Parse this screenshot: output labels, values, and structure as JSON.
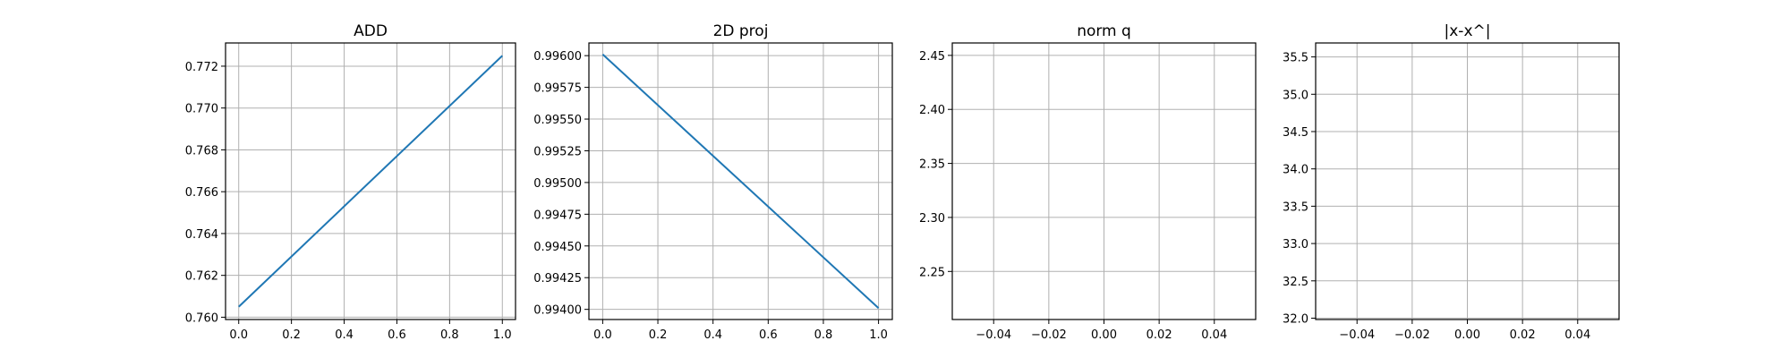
{
  "chart_data": [
    {
      "type": "line",
      "title": "ADD",
      "xlabel": "",
      "ylabel": "",
      "xlim": [
        -0.05,
        1.05
      ],
      "ylim": [
        0.75989,
        0.77311
      ],
      "xticks": [
        0.0,
        0.2,
        0.4,
        0.6,
        0.8,
        1.0
      ],
      "yticks": [
        0.76,
        0.762,
        0.764,
        0.766,
        0.768,
        0.77,
        0.772
      ],
      "xtick_labels": [
        "0.0",
        "0.2",
        "0.4",
        "0.6",
        "0.8",
        "1.0"
      ],
      "ytick_labels": [
        "0.760",
        "0.762",
        "0.764",
        "0.766",
        "0.768",
        "0.770",
        "0.772"
      ],
      "grid": true,
      "series": [
        {
          "x": [
            0,
            1
          ],
          "y": [
            0.7605,
            0.7725
          ],
          "color": "#1f77b4"
        }
      ]
    },
    {
      "type": "line",
      "title": "2D proj",
      "xlabel": "",
      "ylabel": "",
      "xlim": [
        -0.05,
        1.05
      ],
      "ylim": [
        0.99392,
        0.9961
      ],
      "xticks": [
        0.0,
        0.2,
        0.4,
        0.6,
        0.8,
        1.0
      ],
      "yticks": [
        0.994,
        0.99425,
        0.9945,
        0.99475,
        0.995,
        0.99525,
        0.9955,
        0.99575,
        0.996
      ],
      "xtick_labels": [
        "0.0",
        "0.2",
        "0.4",
        "0.6",
        "0.8",
        "1.0"
      ],
      "ytick_labels": [
        "0.99400",
        "0.99425",
        "0.99450",
        "0.99475",
        "0.99500",
        "0.99525",
        "0.99550",
        "0.99575",
        "0.99600"
      ],
      "grid": true,
      "series": [
        {
          "x": [
            0,
            1
          ],
          "y": [
            0.99601,
            0.99401
          ],
          "color": "#1f77b4"
        }
      ]
    },
    {
      "type": "line",
      "title": "norm q",
      "xlabel": "",
      "ylabel": "",
      "xlim": [
        -0.055,
        0.055
      ],
      "ylim": [
        2.2055,
        2.4615
      ],
      "xticks": [
        -0.04,
        -0.02,
        0.0,
        0.02,
        0.04
      ],
      "yticks": [
        2.25,
        2.3,
        2.35,
        2.4,
        2.45
      ],
      "xtick_labels": [
        "−0.04",
        "−0.02",
        "0.00",
        "0.02",
        "0.04"
      ],
      "ytick_labels": [
        "2.25",
        "2.30",
        "2.35",
        "2.40",
        "2.45"
      ],
      "grid": true,
      "series": []
    },
    {
      "type": "line",
      "title": "|x-x^|",
      "xlabel": "",
      "ylabel": "",
      "xlim": [
        -0.055,
        0.055
      ],
      "ylim": [
        31.982,
        35.687
      ],
      "xticks": [
        -0.04,
        -0.02,
        0.0,
        0.02,
        0.04
      ],
      "yticks": [
        32.0,
        32.5,
        33.0,
        33.5,
        34.0,
        34.5,
        35.0,
        35.5
      ],
      "xtick_labels": [
        "−0.04",
        "−0.02",
        "0.00",
        "0.02",
        "0.04"
      ],
      "ytick_labels": [
        "32.0",
        "32.5",
        "33.0",
        "33.5",
        "34.0",
        "34.5",
        "35.0",
        "35.5"
      ],
      "grid": true,
      "series": []
    }
  ]
}
